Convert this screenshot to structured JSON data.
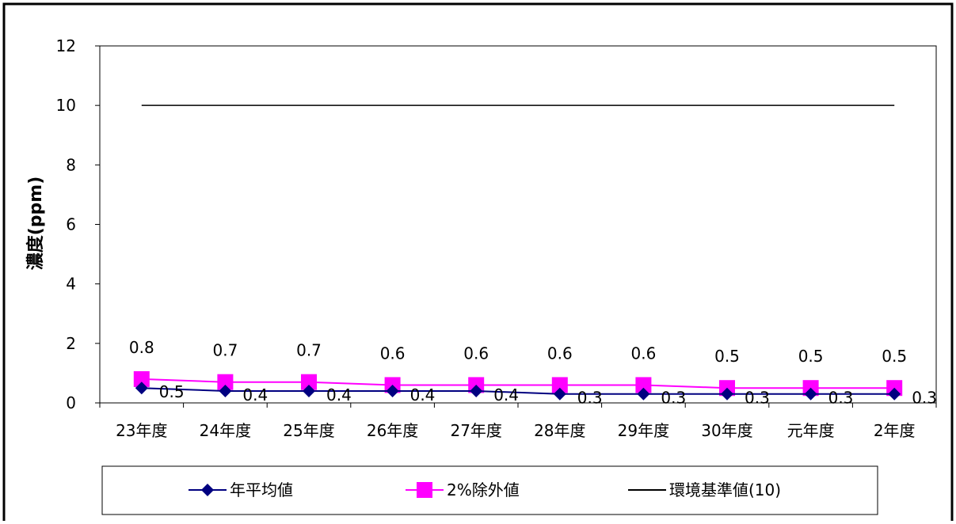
{
  "chart_data": {
    "type": "line",
    "title": "",
    "xlabel": "",
    "ylabel": "濃度(ppm)",
    "ylim": [
      0,
      12
    ],
    "yticks": [
      "0",
      "2",
      "4",
      "6",
      "8",
      "10",
      "12"
    ],
    "categories": [
      "23年度",
      "24年度",
      "25年度",
      "26年度",
      "27年度",
      "28年度",
      "29年度",
      "30年度",
      "元年度",
      "2年度"
    ],
    "series": [
      {
        "name": "年平均値",
        "color": "#000080",
        "marker": "diamond",
        "values": [
          0.5,
          0.4,
          0.4,
          0.4,
          0.4,
          0.3,
          0.3,
          0.3,
          0.3,
          0.3
        ],
        "labels": [
          "0.5",
          "0.4",
          "0.4",
          "0.4",
          "0.4",
          "0.3",
          "0.3",
          "0.3",
          "0.3",
          "0.3"
        ]
      },
      {
        "name": "2%除外値",
        "color": "#ff00ff",
        "marker": "square",
        "values": [
          0.8,
          0.7,
          0.7,
          0.6,
          0.6,
          0.6,
          0.6,
          0.5,
          0.5,
          0.5
        ],
        "labels": [
          "0.8",
          "0.7",
          "0.7",
          "0.6",
          "0.6",
          "0.6",
          "0.6",
          "0.5",
          "0.5",
          "0.5"
        ]
      },
      {
        "name": "環境基準値(10)",
        "color": "#000000",
        "marker": "none",
        "values": [
          10,
          10,
          10,
          10,
          10,
          10,
          10,
          10,
          10,
          10
        ]
      }
    ],
    "grid": false,
    "legend_position": "bottom"
  }
}
